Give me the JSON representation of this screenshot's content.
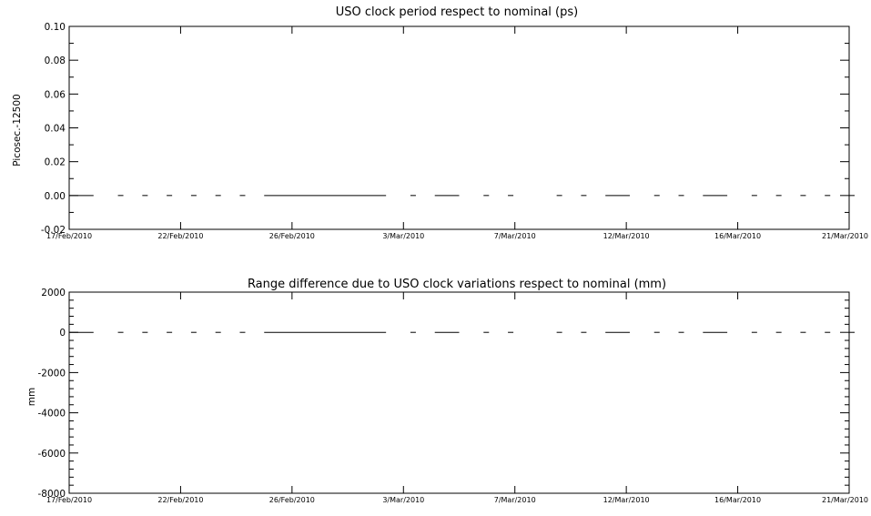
{
  "chart_data": [
    {
      "type": "line",
      "title": "USO clock period respect to nominal (ps)",
      "ylabel": "Picosec.-12500",
      "xlabel": "",
      "x_ticks": [
        "17/Feb/2010",
        "22/Feb/2010",
        "26/Feb/2010",
        "3/Mar/2010",
        "7/Mar/2010",
        "12/Mar/2010",
        "16/Mar/2010",
        "21/Mar/2010"
      ],
      "y_ticks": [
        "0.10",
        "0.08",
        "0.06",
        "0.04",
        "0.02",
        "0.00",
        "-0.02"
      ],
      "xlim": [
        "2010-02-17",
        "2010-03-21"
      ],
      "ylim": [
        -0.02,
        0.1
      ],
      "grid": false,
      "segments": [
        {
          "x": [
            "2010-02-17",
            "2010-02-18"
          ],
          "y": [
            0,
            0
          ]
        },
        {
          "x": [
            "2010-02-19",
            "2010-02-19"
          ],
          "y": [
            0,
            0
          ]
        },
        {
          "x": [
            "2010-02-20",
            "2010-02-20"
          ],
          "y": [
            0,
            0
          ]
        },
        {
          "x": [
            "2010-02-21",
            "2010-02-21"
          ],
          "y": [
            0,
            0
          ]
        },
        {
          "x": [
            "2010-02-22",
            "2010-02-22"
          ],
          "y": [
            0,
            0
          ]
        },
        {
          "x": [
            "2010-02-23",
            "2010-02-23"
          ],
          "y": [
            0,
            0
          ]
        },
        {
          "x": [
            "2010-02-24",
            "2010-02-24"
          ],
          "y": [
            0,
            0
          ]
        },
        {
          "x": [
            "2010-02-25",
            "2010-03-02"
          ],
          "y": [
            0,
            0
          ]
        },
        {
          "x": [
            "2010-03-03",
            "2010-03-03"
          ],
          "y": [
            0,
            0
          ]
        },
        {
          "x": [
            "2010-03-04",
            "2010-03-05"
          ],
          "y": [
            0,
            0
          ]
        },
        {
          "x": [
            "2010-03-06",
            "2010-03-06"
          ],
          "y": [
            0,
            0
          ]
        },
        {
          "x": [
            "2010-03-07",
            "2010-03-07"
          ],
          "y": [
            0,
            0
          ]
        },
        {
          "x": [
            "2010-03-09",
            "2010-03-09"
          ],
          "y": [
            0,
            0
          ]
        },
        {
          "x": [
            "2010-03-10",
            "2010-03-10"
          ],
          "y": [
            0,
            0
          ]
        },
        {
          "x": [
            "2010-03-11",
            "2010-03-12"
          ],
          "y": [
            0,
            0
          ]
        },
        {
          "x": [
            "2010-03-13",
            "2010-03-13"
          ],
          "y": [
            0,
            0
          ]
        },
        {
          "x": [
            "2010-03-14",
            "2010-03-14"
          ],
          "y": [
            0,
            0
          ]
        },
        {
          "x": [
            "2010-03-15",
            "2010-03-16"
          ],
          "y": [
            0,
            0
          ]
        },
        {
          "x": [
            "2010-03-17",
            "2010-03-17"
          ],
          "y": [
            0,
            0
          ]
        },
        {
          "x": [
            "2010-03-18",
            "2010-03-18"
          ],
          "y": [
            0,
            0
          ]
        },
        {
          "x": [
            "2010-03-19",
            "2010-03-19"
          ],
          "y": [
            0,
            0
          ]
        },
        {
          "x": [
            "2010-03-20",
            "2010-03-20"
          ],
          "y": [
            0,
            0
          ]
        },
        {
          "x": [
            "2010-03-21",
            "2010-03-21"
          ],
          "y": [
            0,
            0
          ]
        }
      ]
    },
    {
      "type": "line",
      "title": "Range difference due to USO clock variations respect to nominal (mm)",
      "ylabel": "mm",
      "xlabel": "",
      "x_ticks": [
        "17/Feb/2010",
        "22/Feb/2010",
        "26/Feb/2010",
        "3/Mar/2010",
        "7/Mar/2010",
        "12/Mar/2010",
        "16/Mar/2010",
        "21/Mar/2010"
      ],
      "y_ticks": [
        "2000",
        "0",
        "-2000",
        "-4000",
        "-6000",
        "-8000"
      ],
      "xlim": [
        "2010-02-17",
        "2010-03-21"
      ],
      "ylim": [
        -8000,
        2000
      ],
      "grid": false,
      "segments": [
        {
          "x": [
            "2010-02-17",
            "2010-02-18"
          ],
          "y": [
            0,
            0
          ]
        },
        {
          "x": [
            "2010-02-19",
            "2010-02-19"
          ],
          "y": [
            0,
            0
          ]
        },
        {
          "x": [
            "2010-02-20",
            "2010-02-20"
          ],
          "y": [
            0,
            0
          ]
        },
        {
          "x": [
            "2010-02-21",
            "2010-02-21"
          ],
          "y": [
            0,
            0
          ]
        },
        {
          "x": [
            "2010-02-22",
            "2010-02-22"
          ],
          "y": [
            0,
            0
          ]
        },
        {
          "x": [
            "2010-02-23",
            "2010-02-23"
          ],
          "y": [
            0,
            0
          ]
        },
        {
          "x": [
            "2010-02-24",
            "2010-02-24"
          ],
          "y": [
            0,
            0
          ]
        },
        {
          "x": [
            "2010-02-25",
            "2010-03-02"
          ],
          "y": [
            0,
            0
          ]
        },
        {
          "x": [
            "2010-03-03",
            "2010-03-03"
          ],
          "y": [
            0,
            0
          ]
        },
        {
          "x": [
            "2010-03-04",
            "2010-03-05"
          ],
          "y": [
            0,
            0
          ]
        },
        {
          "x": [
            "2010-03-06",
            "2010-03-06"
          ],
          "y": [
            0,
            0
          ]
        },
        {
          "x": [
            "2010-03-07",
            "2010-03-07"
          ],
          "y": [
            0,
            0
          ]
        },
        {
          "x": [
            "2010-03-09",
            "2010-03-09"
          ],
          "y": [
            0,
            0
          ]
        },
        {
          "x": [
            "2010-03-10",
            "2010-03-10"
          ],
          "y": [
            0,
            0
          ]
        },
        {
          "x": [
            "2010-03-11",
            "2010-03-12"
          ],
          "y": [
            0,
            0
          ]
        },
        {
          "x": [
            "2010-03-13",
            "2010-03-13"
          ],
          "y": [
            0,
            0
          ]
        },
        {
          "x": [
            "2010-03-14",
            "2010-03-14"
          ],
          "y": [
            0,
            0
          ]
        },
        {
          "x": [
            "2010-03-15",
            "2010-03-16"
          ],
          "y": [
            0,
            0
          ]
        },
        {
          "x": [
            "2010-03-17",
            "2010-03-17"
          ],
          "y": [
            0,
            0
          ]
        },
        {
          "x": [
            "2010-03-18",
            "2010-03-18"
          ],
          "y": [
            0,
            0
          ]
        },
        {
          "x": [
            "2010-03-19",
            "2010-03-19"
          ],
          "y": [
            0,
            0
          ]
        },
        {
          "x": [
            "2010-03-20",
            "2010-03-20"
          ],
          "y": [
            0,
            0
          ]
        },
        {
          "x": [
            "2010-03-21",
            "2010-03-21"
          ],
          "y": [
            0,
            0
          ]
        }
      ]
    }
  ]
}
